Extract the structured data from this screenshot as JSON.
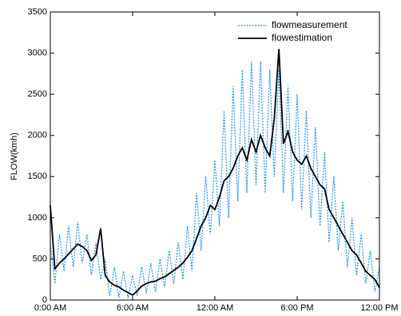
{
  "chart_data": {
    "type": "line",
    "ylabel": "FLOW(kmh)",
    "x": [
      0,
      0.33,
      0.67,
      1,
      1.33,
      1.67,
      2,
      2.33,
      2.67,
      3,
      3.33,
      3.67,
      4,
      4.33,
      4.67,
      5,
      5.33,
      5.67,
      6,
      6.33,
      6.67,
      7,
      7.33,
      7.67,
      8,
      8.33,
      8.67,
      9,
      9.33,
      9.67,
      10,
      10.33,
      10.67,
      11,
      11.33,
      11.67,
      12,
      12.33,
      12.67,
      13,
      13.33,
      13.67,
      14,
      14.33,
      14.67,
      15,
      15.33,
      15.67,
      16,
      16.33,
      16.67,
      17,
      17.33,
      17.67,
      18,
      18.33,
      18.67,
      19,
      19.33,
      19.67,
      20,
      20.33,
      20.67,
      21,
      21.33,
      21.67,
      22,
      22.33,
      22.67,
      23,
      23.33,
      23.67,
      24
    ],
    "series": [
      {
        "name": "flowmeasurement",
        "color": "#1e8fff",
        "style": "dotted",
        "values": [
          700,
          200,
          800,
          350,
          900,
          400,
          950,
          450,
          800,
          300,
          700,
          250,
          500,
          50,
          400,
          30,
          350,
          20,
          300,
          50,
          400,
          80,
          450,
          100,
          500,
          150,
          600,
          200,
          700,
          250,
          900,
          350,
          1300,
          600,
          1500,
          800,
          1700,
          900,
          2300,
          1000,
          2600,
          1200,
          2800,
          1300,
          2900,
          1400,
          2900,
          1300,
          2800,
          1500,
          2800,
          1300,
          2600,
          1200,
          2500,
          1100,
          2300,
          1000,
          2100,
          900,
          1800,
          700,
          1500,
          600,
          1200,
          400,
          1000,
          300,
          800,
          200,
          600,
          100,
          400
        ]
      },
      {
        "name": "flowestimation",
        "color": "#000000",
        "style": "solid",
        "values": [
          1150,
          380,
          450,
          500,
          560,
          620,
          680,
          650,
          600,
          480,
          550,
          870,
          300,
          220,
          180,
          160,
          120,
          90,
          60,
          110,
          170,
          200,
          220,
          230,
          260,
          280,
          320,
          360,
          400,
          450,
          520,
          600,
          750,
          900,
          1000,
          1150,
          1100,
          1250,
          1450,
          1500,
          1600,
          1750,
          1850,
          1700,
          1950,
          1800,
          2000,
          1850,
          1750,
          2200,
          3050,
          1900,
          2050,
          1800,
          1700,
          1650,
          1750,
          1600,
          1500,
          1400,
          1350,
          1100,
          1000,
          900,
          800,
          700,
          600,
          550,
          450,
          350,
          300,
          250,
          150
        ]
      }
    ],
    "xlim": [
      0,
      24
    ],
    "xticks": [
      {
        "value": 0,
        "label": "0:00 AM"
      },
      {
        "value": 6,
        "label": "6:00 AM"
      },
      {
        "value": 12,
        "label": "12:00 AM"
      },
      {
        "value": 18,
        "label": "6:00 PM"
      },
      {
        "value": 24,
        "label": "12:00 PM"
      }
    ],
    "ylim": [
      0,
      3500
    ],
    "yticks": [
      0,
      500,
      1000,
      1500,
      2000,
      2500,
      3000,
      3500
    ],
    "legend": "upper right",
    "grid": false
  }
}
